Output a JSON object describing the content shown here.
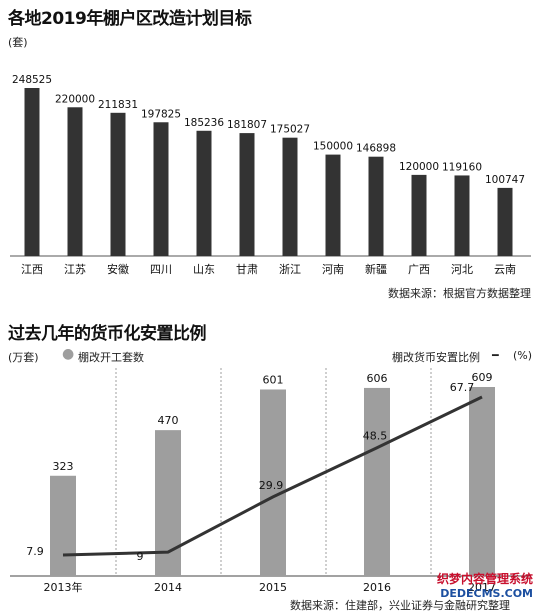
{
  "chart1": {
    "title": "各地2019年棚户区改造计划目标",
    "unit": "(套)",
    "source": "数据来源：根据官方数据整理"
  },
  "chart2": {
    "title": "过去几年的货币化安置比例",
    "unit": "(万套)",
    "bar_legend": "棚改开工套数",
    "line_legend": "棚改货币安置比例",
    "line_unit": "(%)",
    "source": "数据来源：住建部，兴业证券与金融研究整理"
  },
  "watermark": {
    "line1": "织梦内容管理系统",
    "line2": "DEDECMS.COM"
  },
  "colors": {
    "bar_dark": "#333333",
    "bar_gray": "#9e9e9e",
    "line": "#333333"
  },
  "chart_data": [
    {
      "type": "bar",
      "title": "各地2019年棚户区改造计划目标",
      "ylabel": "(套)",
      "categories": [
        "江西",
        "江苏",
        "安徽",
        "四川",
        "山东",
        "甘肃",
        "浙江",
        "河南",
        "新疆",
        "广西",
        "河北",
        "云南"
      ],
      "values": [
        248525,
        220000,
        211831,
        197825,
        185236,
        181807,
        175027,
        150000,
        146898,
        120000,
        119160,
        100747
      ],
      "ylim": [
        0,
        270000
      ],
      "grid": false
    },
    {
      "type": "bar",
      "title": "过去几年的货币化安置比例",
      "ylabel": "(万套)",
      "categories": [
        "2013年",
        "2014",
        "2015",
        "2016",
        "2017"
      ],
      "series": [
        {
          "name": "棚改开工套数",
          "values": [
            323,
            470,
            601,
            606,
            609
          ]
        },
        {
          "name": "棚改货币安置比例",
          "type": "line",
          "values": [
            7.9,
            9.0,
            29.9,
            48.5,
            67.7
          ],
          "unit": "(%)"
        }
      ],
      "grid": true,
      "legend": "top"
    }
  ]
}
